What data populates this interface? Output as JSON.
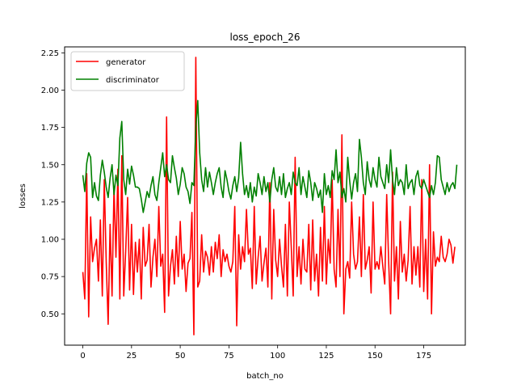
{
  "chart_data": {
    "type": "line",
    "title": "loss_epoch_26",
    "xlabel": "batch_no",
    "ylabel": "losses",
    "xlim": [
      -9.35,
      196.35
    ],
    "ylim": [
      0.29,
      2.29
    ],
    "xticks": [
      0,
      25,
      50,
      75,
      100,
      125,
      150,
      175
    ],
    "xtick_labels": [
      "0",
      "25",
      "50",
      "75",
      "100",
      "125",
      "150",
      "175"
    ],
    "yticks": [
      0.5,
      0.75,
      1.0,
      1.25,
      1.5,
      1.75,
      2.0,
      2.25
    ],
    "ytick_labels": [
      "0.50",
      "0.75",
      "1.00",
      "1.25",
      "1.50",
      "1.75",
      "2.00",
      "2.25"
    ],
    "grid": false,
    "legend_position": "top-left",
    "series": [
      {
        "name": "generator",
        "color": "#ff0000",
        "x_start": 0,
        "x_step": 1,
        "values": [
          0.78,
          0.6,
          1.44,
          0.48,
          1.15,
          0.85,
          0.94,
          1.0,
          0.72,
          1.13,
          0.62,
          1.4,
          0.85,
          0.43,
          1.1,
          0.62,
          1.35,
          0.88,
          1.47,
          0.6,
          1.56,
          0.62,
          0.92,
          1.28,
          0.66,
          1.1,
          0.63,
          0.98,
          0.78,
          1.0,
          0.6,
          1.08,
          0.82,
          0.86,
          1.1,
          0.68,
          0.88,
          1.0,
          0.75,
          1.22,
          0.82,
          0.9,
          0.51,
          1.82,
          0.62,
          0.82,
          0.93,
          0.7,
          1.02,
          0.75,
          1.12,
          0.8,
          0.9,
          0.65,
          0.84,
          0.87,
          1.18,
          0.36,
          2.22,
          0.68,
          0.72,
          1.03,
          0.78,
          0.92,
          0.88,
          0.76,
          0.95,
          0.78,
          0.98,
          0.87,
          1.03,
          0.75,
          0.93,
          0.85,
          0.9,
          0.82,
          0.78,
          0.85,
          1.22,
          0.42,
          1.03,
          0.8,
          0.95,
          0.85,
          1.2,
          0.9,
          0.94,
          0.67,
          1.22,
          0.7,
          0.88,
          1.02,
          0.72,
          0.84,
          0.94,
          0.68,
          1.38,
          0.6,
          1.2,
          0.86,
          0.75,
          1.0,
          0.82,
          0.68,
          1.1,
          0.62,
          1.25,
          0.95,
          0.62,
          1.55,
          0.75,
          0.95,
          0.7,
          1.0,
          0.8,
          0.78,
          1.1,
          0.66,
          1.13,
          0.72,
          0.9,
          0.62,
          1.08,
          0.72,
          1.22,
          0.7,
          1.0,
          0.84,
          1.4,
          0.8,
          0.68,
          1.2,
          0.75,
          1.7,
          0.5,
          0.8,
          0.85,
          0.74,
          1.25,
          0.9,
          0.8,
          0.85,
          1.15,
          0.75,
          1.3,
          0.8,
          0.86,
          0.95,
          0.64,
          1.25,
          0.8,
          0.85,
          0.8,
          0.95,
          0.82,
          0.7,
          1.3,
          0.85,
          0.5,
          1.45,
          0.72,
          0.95,
          0.6,
          1.12,
          0.78,
          0.9,
          0.72,
          0.86,
          1.22,
          0.7,
          0.95,
          0.76,
          0.95,
          0.68,
          1.4,
          0.65,
          1.0,
          0.6,
          1.5,
          0.5,
          1.05,
          0.82,
          0.88,
          0.85,
          1.02,
          0.88,
          0.85,
          0.9,
          1.0,
          0.96,
          0.84,
          0.95
        ]
      },
      {
        "name": "discriminator",
        "color": "#008000",
        "x_start": 0,
        "x_step": 1,
        "values": [
          1.43,
          1.32,
          1.51,
          1.58,
          1.55,
          1.28,
          1.38,
          1.29,
          1.26,
          1.43,
          1.53,
          1.45,
          1.35,
          1.28,
          1.41,
          1.5,
          1.3,
          1.43,
          1.36,
          1.68,
          1.79,
          1.4,
          1.3,
          1.47,
          1.37,
          1.49,
          1.43,
          1.35,
          1.35,
          1.34,
          1.27,
          1.18,
          1.25,
          1.32,
          1.28,
          1.36,
          1.42,
          1.3,
          1.26,
          1.38,
          1.48,
          1.58,
          1.42,
          1.5,
          1.4,
          1.38,
          1.56,
          1.48,
          1.41,
          1.3,
          1.37,
          1.48,
          1.44,
          1.35,
          1.32,
          1.24,
          1.38,
          1.36,
          1.75,
          1.93,
          1.58,
          1.4,
          1.32,
          1.48,
          1.35,
          1.45,
          1.38,
          1.3,
          1.38,
          1.44,
          1.48,
          1.35,
          1.28,
          1.46,
          1.4,
          1.32,
          1.27,
          1.36,
          1.42,
          1.32,
          1.41,
          1.65,
          1.44,
          1.3,
          1.36,
          1.28,
          1.38,
          1.25,
          1.35,
          1.29,
          1.44,
          1.38,
          1.3,
          1.42,
          1.32,
          1.38,
          1.25,
          1.4,
          1.48,
          1.35,
          1.32,
          1.42,
          1.3,
          1.44,
          1.28,
          1.34,
          1.38,
          1.3,
          1.45,
          1.38,
          1.36,
          1.48,
          1.3,
          1.42,
          1.35,
          1.28,
          1.46,
          1.38,
          1.26,
          1.38,
          1.34,
          1.28,
          1.33,
          1.18,
          1.44,
          1.3,
          1.36,
          1.28,
          1.46,
          1.4,
          1.6,
          1.38,
          1.45,
          1.28,
          1.34,
          1.25,
          1.55,
          1.39,
          1.27,
          1.38,
          1.44,
          1.32,
          1.67,
          1.55,
          1.38,
          1.3,
          1.52,
          1.4,
          1.35,
          1.48,
          1.4,
          1.35,
          1.55,
          1.42,
          1.38,
          1.34,
          1.5,
          1.38,
          1.6,
          1.4,
          1.3,
          1.48,
          1.36,
          1.4,
          1.38,
          1.3,
          1.5,
          1.34,
          1.38,
          1.4,
          1.3,
          1.42,
          1.46,
          1.36,
          1.34,
          1.4,
          1.36,
          1.32,
          1.28,
          1.36,
          1.3,
          1.38,
          1.56,
          1.55,
          1.4,
          1.35,
          1.3,
          1.38,
          1.32,
          1.36,
          1.38,
          1.34,
          1.5
        ]
      }
    ]
  }
}
